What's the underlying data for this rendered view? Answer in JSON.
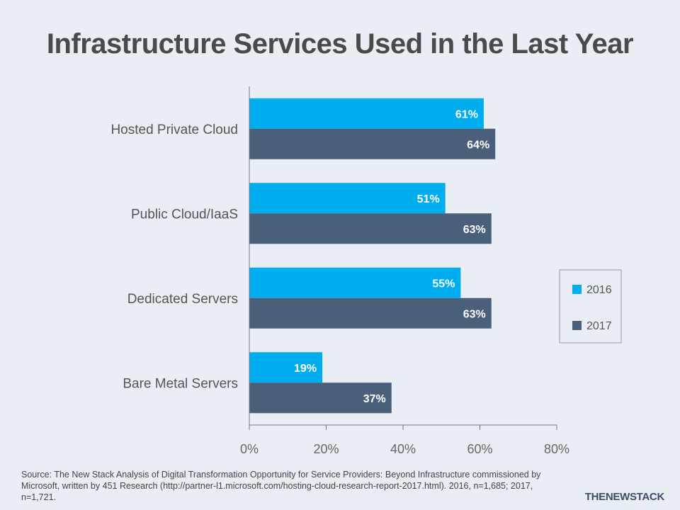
{
  "title": "Infrastructure Services Used in the Last Year",
  "chart_data": {
    "type": "bar",
    "orientation": "horizontal",
    "categories": [
      "Hosted Private Cloud",
      "Public Cloud/IaaS",
      "Dedicated Servers",
      "Bare Metal Servers"
    ],
    "series": [
      {
        "name": "2016",
        "values": [
          61,
          51,
          55,
          19
        ],
        "color": "#00aeef"
      },
      {
        "name": "2017",
        "values": [
          64,
          63,
          63,
          37
        ],
        "color": "#4a5f7a"
      }
    ],
    "data_labels": [
      [
        "61%",
        "51%",
        "55%",
        "19%"
      ],
      [
        "64%",
        "63%",
        "63%",
        "37%"
      ]
    ],
    "xlim": [
      0,
      80
    ],
    "xticks": [
      0,
      20,
      40,
      60,
      80
    ],
    "xtick_labels": [
      "0%",
      "20%",
      "40%",
      "60%",
      "80%"
    ],
    "legend_position": "right",
    "grid": false
  },
  "source": "Source: The New Stack Analysis of Digital Transformation  Opportunity for Service Providers: Beyond Infrastructure commissioned by Microsoft, written by 451 Research (http://partner-l1.microsoft.com/hosting-cloud-research-report-2017.html). 2016, n=1,685; 2017, n=1,721.",
  "brand": "THENEWSTACK"
}
